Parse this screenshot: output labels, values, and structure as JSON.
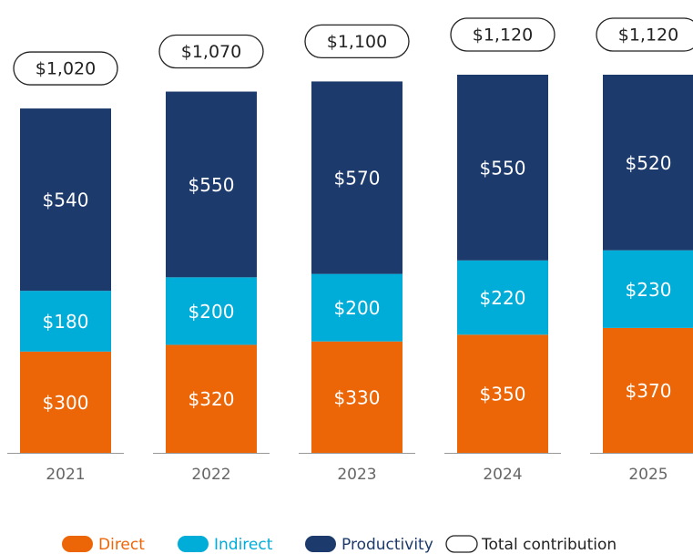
{
  "chart_data": {
    "type": "bar",
    "stacked": true,
    "categories": [
      "2021",
      "2022",
      "2023",
      "2024",
      "2025"
    ],
    "series": [
      {
        "name": "Direct",
        "color": "#ec6608",
        "values": [
          300,
          320,
          330,
          350,
          370
        ],
        "value_labels": [
          "$300",
          "$320",
          "$330",
          "$350",
          "$370"
        ]
      },
      {
        "name": "Indirect",
        "color": "#00acd8",
        "values": [
          180,
          200,
          200,
          220,
          230
        ],
        "value_labels": [
          "$180",
          "$200",
          "$200",
          "$220",
          "$230"
        ]
      },
      {
        "name": "Productivity",
        "color": "#1c3a6b",
        "values": [
          540,
          550,
          570,
          550,
          520
        ],
        "value_labels": [
          "$540",
          "$550",
          "$570",
          "$550",
          "$520"
        ]
      }
    ],
    "totals": {
      "name": "Total contribution",
      "values": [
        1020,
        1070,
        1100,
        1120,
        1120
      ],
      "value_labels": [
        "$1,020",
        "$1,070",
        "$1,100",
        "$1,120",
        "$1,120"
      ]
    }
  }
}
